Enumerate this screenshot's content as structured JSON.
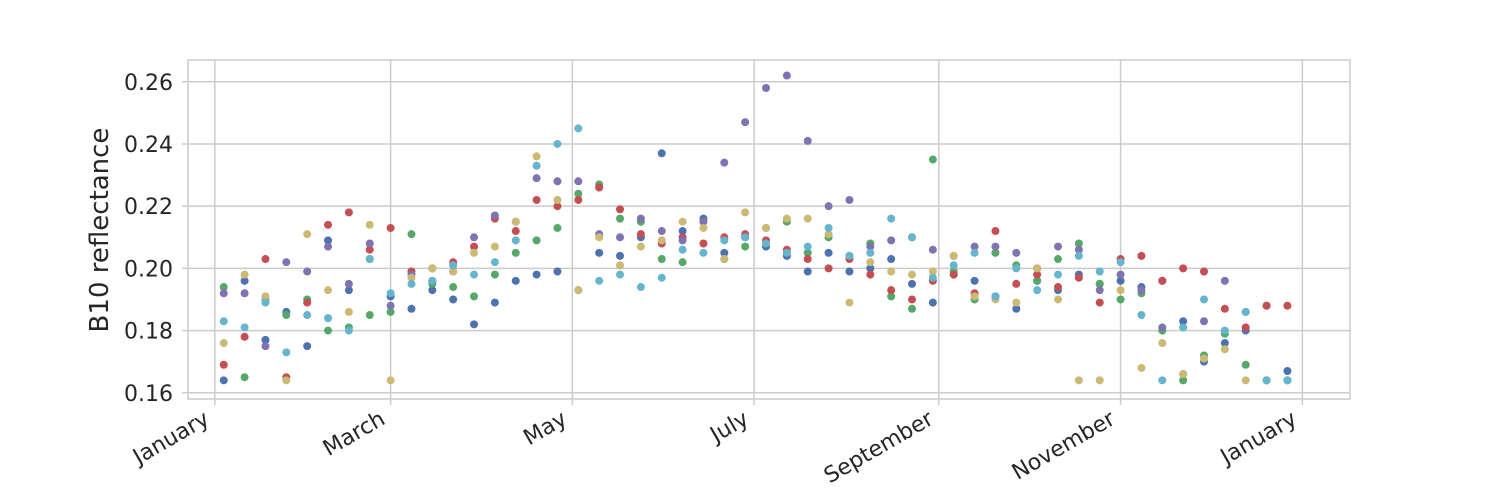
{
  "chart_data": {
    "type": "scatter",
    "title": "",
    "xlabel": "",
    "ylabel": "B10 reflectance",
    "x_ticks": [
      {
        "label": "January",
        "date": "2017-01-01"
      },
      {
        "label": "March",
        "date": "2017-03-01"
      },
      {
        "label": "May",
        "date": "2017-05-01"
      },
      {
        "label": "July",
        "date": "2017-07-01"
      },
      {
        "label": "September",
        "date": "2017-09-01"
      },
      {
        "label": "November",
        "date": "2017-11-01"
      },
      {
        "label": "January",
        "date": "2018-01-01"
      }
    ],
    "xlim": [
      "2016-12-23",
      "2018-01-17"
    ],
    "y_ticks": [
      0.16,
      0.18,
      0.2,
      0.22,
      0.24,
      0.26
    ],
    "ylim": [
      0.158,
      0.267
    ],
    "grid": true,
    "legend": "none",
    "colors": [
      "#4c72b0",
      "#55a868",
      "#c44e52",
      "#8172b2",
      "#ccb974",
      "#64b5cd"
    ],
    "series": [
      {
        "x": [
          "2017-01-04",
          "2017-01-11",
          "2017-01-18",
          "2017-01-25",
          "2017-02-01",
          "2017-02-08",
          "2017-02-15",
          "2017-02-22",
          "2017-03-01",
          "2017-03-08",
          "2017-03-15",
          "2017-03-22",
          "2017-03-29",
          "2017-04-05",
          "2017-04-12",
          "2017-04-19",
          "2017-04-26",
          "2017-05-03",
          "2017-05-10",
          "2017-05-17",
          "2017-05-24",
          "2017-05-31",
          "2017-06-07",
          "2017-06-14",
          "2017-06-21",
          "2017-06-28",
          "2017-07-05",
          "2017-07-12",
          "2017-07-19",
          "2017-07-26",
          "2017-08-02",
          "2017-08-09",
          "2017-08-16",
          "2017-08-23",
          "2017-08-30",
          "2017-09-06",
          "2017-09-13",
          "2017-09-20",
          "2017-09-27",
          "2017-10-04",
          "2017-10-11",
          "2017-10-18",
          "2017-10-25",
          "2017-11-01",
          "2017-11-08",
          "2017-11-15",
          "2017-11-22",
          "2017-11-29",
          "2017-12-06",
          "2017-12-13",
          "2017-12-20",
          "2017-12-27"
        ],
        "y": [
          0.164,
          0.196,
          0.177,
          0.186,
          0.175,
          0.209,
          0.193,
          0.203,
          0.191,
          0.187,
          0.193,
          0.19,
          0.182,
          0.189,
          0.196,
          0.198,
          0.199,
          0.193,
          0.205,
          0.204,
          0.21,
          0.237,
          0.212,
          0.216,
          0.205,
          0.21,
          0.207,
          0.204,
          0.199,
          0.205,
          0.199,
          0.2,
          0.203,
          0.195,
          0.189,
          0.198,
          0.196,
          0.191,
          0.187,
          0.196,
          0.193,
          0.198,
          0.195,
          0.196,
          0.194,
          0.196,
          0.183,
          0.17,
          0.176,
          0.18,
          0.188,
          0.167
        ]
      },
      {
        "x": [
          "2017-01-04",
          "2017-01-11",
          "2017-01-18",
          "2017-01-25",
          "2017-02-01",
          "2017-02-08",
          "2017-02-15",
          "2017-02-22",
          "2017-03-01",
          "2017-03-08",
          "2017-03-15",
          "2017-03-22",
          "2017-03-29",
          "2017-04-05",
          "2017-04-12",
          "2017-04-19",
          "2017-04-26",
          "2017-05-03",
          "2017-05-10",
          "2017-05-17",
          "2017-05-24",
          "2017-05-31",
          "2017-06-07",
          "2017-06-14",
          "2017-06-21",
          "2017-06-28",
          "2017-07-05",
          "2017-07-12",
          "2017-07-19",
          "2017-07-26",
          "2017-08-02",
          "2017-08-09",
          "2017-08-16",
          "2017-08-23",
          "2017-08-30",
          "2017-09-06",
          "2017-09-13",
          "2017-09-20",
          "2017-09-27",
          "2017-10-04",
          "2017-10-11",
          "2017-10-18",
          "2017-10-25",
          "2017-11-01",
          "2017-11-08",
          "2017-11-15",
          "2017-11-22",
          "2017-11-29",
          "2017-12-06",
          "2017-12-13",
          "2017-12-20",
          "2017-12-27"
        ],
        "y": [
          0.194,
          0.165,
          0.19,
          0.185,
          0.19,
          0.18,
          0.181,
          0.185,
          0.186,
          0.211,
          0.195,
          0.194,
          0.191,
          0.198,
          0.205,
          0.209,
          0.213,
          0.224,
          0.227,
          0.216,
          0.215,
          0.203,
          0.202,
          0.215,
          0.203,
          0.207,
          0.213,
          0.215,
          0.205,
          0.21,
          0.204,
          0.208,
          0.191,
          0.187,
          0.235,
          0.199,
          0.19,
          0.205,
          0.201,
          0.196,
          0.203,
          0.208,
          0.195,
          0.19,
          0.192,
          0.18,
          0.164,
          0.172,
          0.179,
          0.169,
          0.164,
          0.164
        ]
      },
      {
        "x": [
          "2017-01-04",
          "2017-01-11",
          "2017-01-18",
          "2017-01-25",
          "2017-02-01",
          "2017-02-08",
          "2017-02-15",
          "2017-02-22",
          "2017-03-01",
          "2017-03-08",
          "2017-03-15",
          "2017-03-22",
          "2017-03-29",
          "2017-04-05",
          "2017-04-12",
          "2017-04-19",
          "2017-04-26",
          "2017-05-03",
          "2017-05-10",
          "2017-05-17",
          "2017-05-24",
          "2017-05-31",
          "2017-06-07",
          "2017-06-14",
          "2017-06-21",
          "2017-06-28",
          "2017-07-05",
          "2017-07-12",
          "2017-07-19",
          "2017-07-26",
          "2017-08-02",
          "2017-08-09",
          "2017-08-16",
          "2017-08-23",
          "2017-08-30",
          "2017-09-06",
          "2017-09-13",
          "2017-09-20",
          "2017-09-27",
          "2017-10-04",
          "2017-10-11",
          "2017-10-18",
          "2017-10-25",
          "2017-11-01",
          "2017-11-08",
          "2017-11-15",
          "2017-11-22",
          "2017-11-29",
          "2017-12-06",
          "2017-12-13",
          "2017-12-20",
          "2017-12-27"
        ],
        "y": [
          0.169,
          0.178,
          0.203,
          0.165,
          0.189,
          0.214,
          0.218,
          0.206,
          0.213,
          0.199,
          0.196,
          0.202,
          0.207,
          0.216,
          0.212,
          0.222,
          0.22,
          0.222,
          0.226,
          0.219,
          0.211,
          0.208,
          0.21,
          0.208,
          0.21,
          0.211,
          0.209,
          0.206,
          0.203,
          0.2,
          0.203,
          0.198,
          0.193,
          0.19,
          0.196,
          0.198,
          0.192,
          0.212,
          0.195,
          0.198,
          0.194,
          0.197,
          0.189,
          0.203,
          0.204,
          0.196,
          0.2,
          0.199,
          0.187,
          0.181,
          0.188,
          0.188
        ]
      },
      {
        "x": [
          "2017-01-04",
          "2017-01-11",
          "2017-01-18",
          "2017-01-25",
          "2017-02-01",
          "2017-02-08",
          "2017-02-15",
          "2017-02-22",
          "2017-03-01",
          "2017-03-08",
          "2017-03-15",
          "2017-03-22",
          "2017-03-29",
          "2017-04-05",
          "2017-04-12",
          "2017-04-19",
          "2017-04-26",
          "2017-05-03",
          "2017-05-10",
          "2017-05-17",
          "2017-05-24",
          "2017-05-31",
          "2017-06-07",
          "2017-06-14",
          "2017-06-21",
          "2017-06-28",
          "2017-07-05",
          "2017-07-12",
          "2017-07-19",
          "2017-07-26",
          "2017-08-02",
          "2017-08-09",
          "2017-08-16",
          "2017-08-23",
          "2017-08-30",
          "2017-09-06",
          "2017-09-13",
          "2017-09-20",
          "2017-09-27",
          "2017-10-04",
          "2017-10-11",
          "2017-10-18",
          "2017-10-25",
          "2017-11-01",
          "2017-11-08",
          "2017-11-15",
          "2017-11-22",
          "2017-11-29",
          "2017-12-06",
          "2017-12-13",
          "2017-12-20",
          "2017-12-27"
        ],
        "y": [
          0.192,
          0.192,
          0.175,
          0.202,
          0.199,
          0.207,
          0.195,
          0.208,
          0.188,
          0.198,
          0.2,
          0.199,
          0.21,
          0.217,
          0.215,
          0.229,
          0.228,
          0.228,
          0.211,
          0.21,
          0.216,
          0.212,
          0.209,
          0.215,
          0.234,
          0.247,
          0.258,
          0.262,
          0.241,
          0.22,
          0.222,
          0.207,
          0.209,
          0.21,
          0.206,
          0.204,
          0.207,
          0.207,
          0.205,
          0.2,
          0.207,
          0.206,
          0.193,
          0.198,
          0.193,
          0.181,
          0.166,
          0.183,
          0.196,
          0.186,
          0.164,
          0.164
        ]
      },
      {
        "x": [
          "2017-01-04",
          "2017-01-11",
          "2017-01-18",
          "2017-01-25",
          "2017-02-01",
          "2017-02-08",
          "2017-02-15",
          "2017-02-22",
          "2017-03-01",
          "2017-03-08",
          "2017-03-15",
          "2017-03-22",
          "2017-03-29",
          "2017-04-05",
          "2017-04-12",
          "2017-04-19",
          "2017-04-26",
          "2017-05-03",
          "2017-05-10",
          "2017-05-17",
          "2017-05-24",
          "2017-05-31",
          "2017-06-07",
          "2017-06-14",
          "2017-06-21",
          "2017-06-28",
          "2017-07-05",
          "2017-07-12",
          "2017-07-19",
          "2017-07-26",
          "2017-08-02",
          "2017-08-09",
          "2017-08-16",
          "2017-08-23",
          "2017-08-30",
          "2017-09-06",
          "2017-09-13",
          "2017-09-20",
          "2017-09-27",
          "2017-10-04",
          "2017-10-11",
          "2017-10-18",
          "2017-10-25",
          "2017-11-01",
          "2017-11-08",
          "2017-11-15",
          "2017-11-22",
          "2017-11-29",
          "2017-12-06",
          "2017-12-13",
          "2017-12-20",
          "2017-12-27"
        ],
        "y": [
          0.176,
          0.198,
          0.191,
          0.164,
          0.211,
          0.193,
          0.186,
          0.214,
          0.164,
          0.197,
          0.2,
          0.199,
          0.205,
          0.207,
          0.215,
          0.236,
          0.222,
          0.193,
          0.21,
          0.201,
          0.207,
          0.209,
          0.215,
          0.213,
          0.203,
          0.218,
          0.213,
          0.216,
          0.216,
          0.211,
          0.189,
          0.202,
          0.199,
          0.198,
          0.199,
          0.204,
          0.191,
          0.19,
          0.189,
          0.2,
          0.19,
          0.164,
          0.164,
          0.193,
          0.168,
          0.176,
          0.166,
          0.171,
          0.174,
          0.164,
          0.164,
          0.164
        ]
      },
      {
        "x": [
          "2017-01-04",
          "2017-01-11",
          "2017-01-18",
          "2017-01-25",
          "2017-02-01",
          "2017-02-08",
          "2017-02-15",
          "2017-02-22",
          "2017-03-01",
          "2017-03-08",
          "2017-03-15",
          "2017-03-22",
          "2017-03-29",
          "2017-04-05",
          "2017-04-12",
          "2017-04-19",
          "2017-04-26",
          "2017-05-03",
          "2017-05-10",
          "2017-05-17",
          "2017-05-24",
          "2017-05-31",
          "2017-06-07",
          "2017-06-14",
          "2017-06-21",
          "2017-06-28",
          "2017-07-05",
          "2017-07-12",
          "2017-07-19",
          "2017-07-26",
          "2017-08-02",
          "2017-08-09",
          "2017-08-16",
          "2017-08-23",
          "2017-08-30",
          "2017-09-06",
          "2017-09-13",
          "2017-09-20",
          "2017-09-27",
          "2017-10-04",
          "2017-10-11",
          "2017-10-18",
          "2017-10-25",
          "2017-11-01",
          "2017-11-08",
          "2017-11-15",
          "2017-11-22",
          "2017-11-29",
          "2017-12-06",
          "2017-12-13",
          "2017-12-20",
          "2017-12-27"
        ],
        "y": [
          0.183,
          0.181,
          0.189,
          0.173,
          0.185,
          0.184,
          0.18,
          0.203,
          0.192,
          0.195,
          0.196,
          0.201,
          0.198,
          0.202,
          0.209,
          0.233,
          0.24,
          0.245,
          0.196,
          0.198,
          0.194,
          0.197,
          0.206,
          0.205,
          0.209,
          0.21,
          0.208,
          0.205,
          0.207,
          0.213,
          0.204,
          0.205,
          0.216,
          0.21,
          0.197,
          0.201,
          0.205,
          0.191,
          0.2,
          0.193,
          0.198,
          0.204,
          0.199,
          0.202,
          0.185,
          0.164,
          0.181,
          0.19,
          0.18,
          0.186,
          0.164,
          0.164
        ]
      }
    ]
  }
}
